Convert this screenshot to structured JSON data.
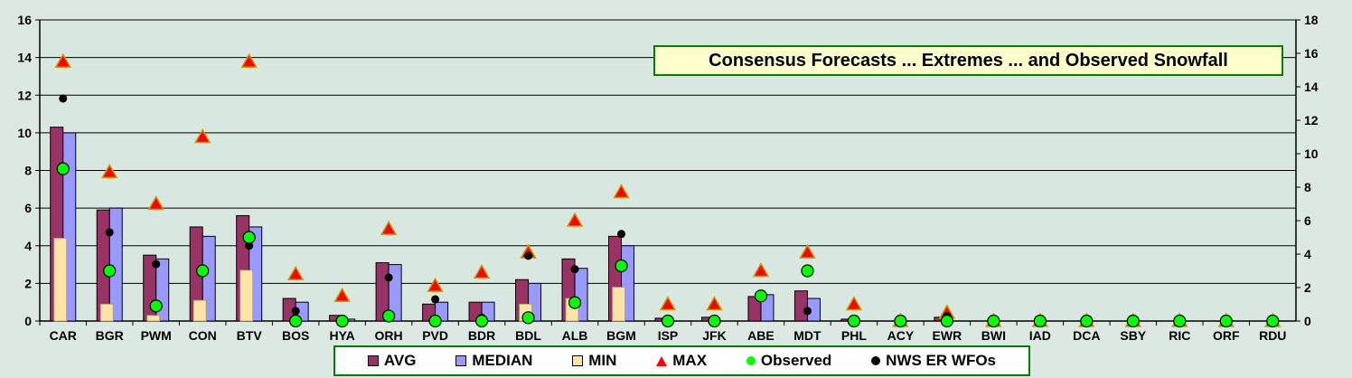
{
  "chart_data": {
    "type": "bar",
    "title": "Consensus Forecasts ... Extremes ... and Observed Snowfall",
    "categories": [
      "CAR",
      "BGR",
      "PWM",
      "CON",
      "BTV",
      "BOS",
      "HYA",
      "ORH",
      "PVD",
      "BDR",
      "BDL",
      "ALB",
      "BGM",
      "ISP",
      "JFK",
      "ABE",
      "MDT",
      "PHL",
      "ACY",
      "EWR",
      "BWI",
      "IAD",
      "DCA",
      "SBY",
      "RIC",
      "ORF",
      "RDU"
    ],
    "ylim_left": [
      0,
      16
    ],
    "ylim_right": [
      0,
      18
    ],
    "yticks_left": [
      0,
      2,
      4,
      6,
      8,
      10,
      12,
      14,
      16
    ],
    "yticks_right": [
      0,
      2,
      4,
      6,
      8,
      10,
      12,
      14,
      16,
      18
    ],
    "grid": true,
    "legend_position": "bottom",
    "series": [
      {
        "name": "AVG",
        "type": "bar",
        "axis": "left",
        "color": "#993366",
        "values": [
          10.3,
          5.9,
          3.5,
          5.0,
          5.6,
          1.2,
          0.3,
          3.1,
          0.9,
          1.0,
          2.2,
          3.3,
          4.5,
          0.15,
          0.2,
          1.3,
          1.6,
          0.1,
          0,
          0.2,
          0,
          0,
          0,
          0,
          0,
          0,
          0
        ]
      },
      {
        "name": "MEDIAN",
        "type": "bar",
        "axis": "left",
        "color": "#9999ff",
        "values": [
          10.0,
          6.0,
          3.3,
          4.5,
          5.0,
          1.0,
          0.1,
          3.0,
          1.0,
          1.0,
          2.0,
          2.8,
          4.0,
          0,
          0,
          1.4,
          1.2,
          0,
          0,
          0,
          0,
          0,
          0,
          0,
          0,
          0,
          0
        ]
      },
      {
        "name": "MIN",
        "type": "bar",
        "axis": "left",
        "color": "#ffe4a8",
        "values": [
          4.4,
          0.9,
          0.3,
          1.1,
          2.7,
          0,
          0,
          0,
          0,
          0,
          0.9,
          1.2,
          1.8,
          0,
          0,
          0,
          0,
          0,
          0,
          0,
          0,
          0,
          0,
          0,
          0,
          0,
          0
        ]
      },
      {
        "name": "MAX",
        "type": "triangle",
        "axis": "right",
        "color": "#ff0000",
        "values": [
          15.5,
          8.9,
          7.0,
          11.0,
          15.5,
          2.8,
          1.5,
          5.5,
          2.1,
          2.9,
          4.1,
          6.0,
          7.7,
          1.0,
          1.0,
          3.0,
          4.1,
          1.0,
          0,
          0.5,
          0,
          0,
          0,
          0,
          0,
          0,
          0
        ]
      },
      {
        "name": "Observed",
        "type": "dot",
        "axis": "right",
        "color": "#00ff00",
        "values": [
          9.1,
          3.0,
          0.9,
          3.0,
          5.0,
          0.0,
          0.0,
          0.3,
          0.0,
          0.0,
          0.2,
          1.1,
          3.3,
          0.0,
          0.0,
          1.5,
          3.0,
          0.0,
          0,
          0.0,
          0,
          0,
          0,
          0,
          0,
          0,
          0
        ]
      },
      {
        "name": "NWS ER WFOs",
        "type": "dot",
        "axis": "right",
        "color": "#000000",
        "values": [
          13.3,
          5.3,
          3.4,
          2.9,
          4.5,
          0.6,
          0.0,
          2.6,
          1.3,
          0.2,
          3.9,
          3.1,
          5.2,
          0,
          0,
          1.4,
          0.6,
          0,
          0,
          0.3,
          0,
          0,
          0,
          0,
          0,
          0,
          0
        ]
      }
    ]
  },
  "legend": {
    "items": [
      {
        "label": "AVG",
        "shape": "square",
        "color": "#993366"
      },
      {
        "label": "MEDIAN",
        "shape": "square",
        "color": "#9999ff"
      },
      {
        "label": "MIN",
        "shape": "square",
        "color": "#ffe4a8"
      },
      {
        "label": "MAX",
        "shape": "triangle",
        "color": "#ff0000"
      },
      {
        "label": "Observed",
        "shape": "dot",
        "color": "#00ff00"
      },
      {
        "label": "NWS ER WFOs",
        "shape": "dot",
        "color": "#000000"
      }
    ]
  }
}
